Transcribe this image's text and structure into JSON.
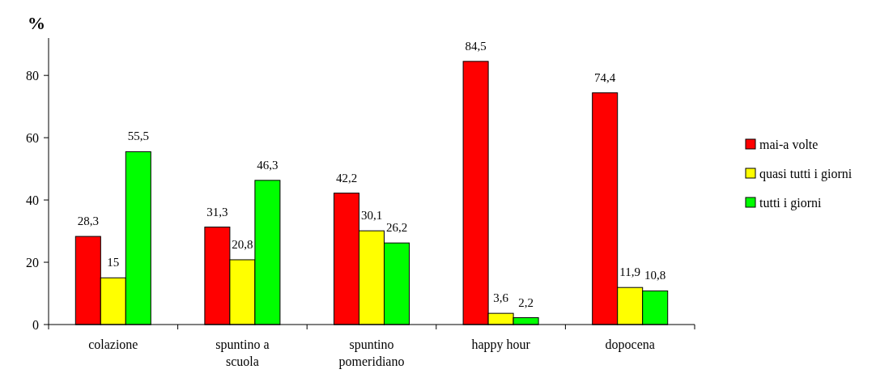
{
  "chart_data": {
    "type": "bar",
    "ylabel": "%",
    "categories": [
      "colazione",
      "spuntino a scuola",
      "spuntino pomeridiano",
      "happy hour",
      "dopocena"
    ],
    "series": [
      {
        "name": "mai-a volte",
        "color": "#ff0000",
        "values": [
          28.3,
          31.3,
          42.2,
          84.5,
          74.4
        ],
        "value_labels": [
          "28,3",
          "31,3",
          "42,2",
          "84,5",
          "74,4"
        ]
      },
      {
        "name": "quasi tutti i giorni",
        "color": "#ffff00",
        "values": [
          15,
          20.8,
          30.1,
          3.6,
          11.9
        ],
        "value_labels": [
          "15",
          "20,8",
          "30,1",
          "3,6",
          "11,9"
        ]
      },
      {
        "name": "tutti i giorni",
        "color": "#00ff00",
        "values": [
          55.5,
          46.3,
          26.2,
          2.2,
          10.8
        ],
        "value_labels": [
          "55,5",
          "46,3",
          "26,2",
          "2,2",
          "10,8"
        ]
      }
    ],
    "ylim": [
      0,
      92
    ],
    "yticks": [
      0,
      20,
      40,
      60,
      80
    ],
    "grid": false,
    "legend": "right"
  }
}
